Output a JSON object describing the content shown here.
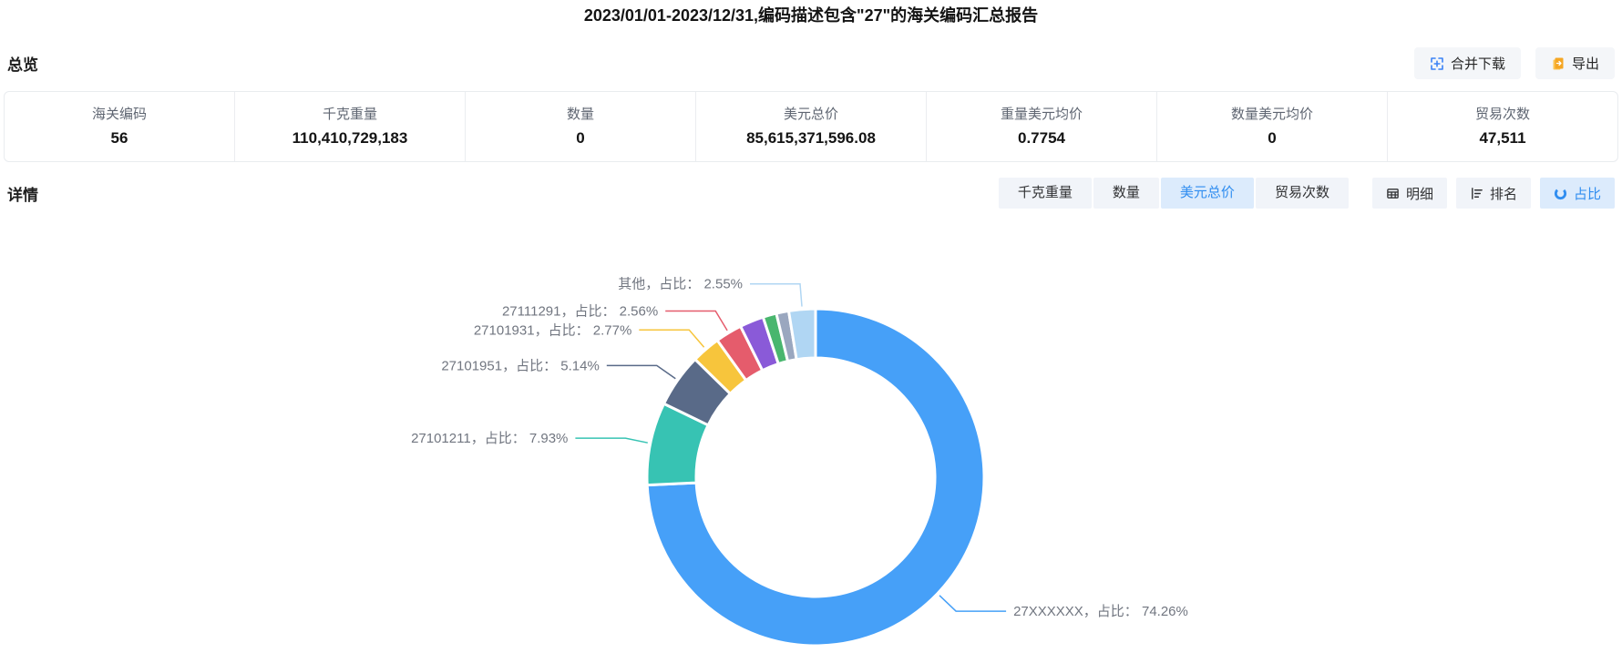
{
  "title": "2023/01/01-2023/12/31,编码描述包含\"27\"的海关编码汇总报告",
  "overview": {
    "heading": "总览",
    "buttons": [
      {
        "label": "合并下载",
        "icon": "merge-download-icon"
      },
      {
        "label": "导出",
        "icon": "export-icon"
      }
    ],
    "stats": [
      {
        "label": "海关编码",
        "value": "56"
      },
      {
        "label": "千克重量",
        "value": "110,410,729,183"
      },
      {
        "label": "数量",
        "value": "0"
      },
      {
        "label": "美元总价",
        "value": "85,615,371,596.08"
      },
      {
        "label": "重量美元均价",
        "value": "0.7754"
      },
      {
        "label": "数量美元均价",
        "value": "0"
      },
      {
        "label": "贸易次数",
        "value": "47,511"
      }
    ]
  },
  "detail": {
    "heading": "详情",
    "metric_tabs": [
      {
        "label": "千克重量",
        "active": false
      },
      {
        "label": "数量",
        "active": false
      },
      {
        "label": "美元总价",
        "active": true
      },
      {
        "label": "贸易次数",
        "active": false
      }
    ],
    "view_tabs": [
      {
        "label": "明细",
        "icon": "table-icon",
        "active": false
      },
      {
        "label": "排名",
        "icon": "rank-icon",
        "active": false
      },
      {
        "label": "占比",
        "icon": "pie-icon",
        "active": true
      }
    ]
  },
  "colors": {
    "accent_blue": "#2f8df0",
    "tab_active_bg": "#dcebfc",
    "tab_inactive_bg": "#f1f4f9",
    "button_bg": "#f4f6f9",
    "export_icon_orange": "#f5a623"
  },
  "chart_data": {
    "type": "pie",
    "subtype": "donut",
    "title": "",
    "legend": "none",
    "label_format": "{name}，占比： {value}%",
    "slices": [
      {
        "name": "27XXXXXX",
        "value": 74.26,
        "color": "#46a0f8",
        "label_text": "27XXXXXX，占比： 74.26%"
      },
      {
        "name": "27101211",
        "value": 7.93,
        "color": "#37c3b3",
        "label_text": "27101211，占比： 7.93%"
      },
      {
        "name": "27101951",
        "value": 5.14,
        "color": "#596a88",
        "label_text": "27101951，占比： 5.14%"
      },
      {
        "name": "27101931",
        "value": 2.77,
        "color": "#f7c53c",
        "label_text": "27101931，占比： 2.77%"
      },
      {
        "name": "27111291",
        "value": 2.56,
        "color": "#e55c6c",
        "label_text": "27111291，占比： 2.56%"
      },
      {
        "name": "",
        "value": 2.3,
        "color": "#8a5ad8",
        "label_text": "",
        "estimated": true
      },
      {
        "name": "",
        "value": 1.3,
        "color": "#49b66e",
        "label_text": "",
        "estimated": true
      },
      {
        "name": "",
        "value": 1.19,
        "color": "#9aa7bf",
        "label_text": "",
        "estimated": true
      },
      {
        "name": "其他",
        "value": 2.55,
        "color": "#b0d6f3",
        "label_text": "其他，占比： 2.55%"
      }
    ]
  }
}
